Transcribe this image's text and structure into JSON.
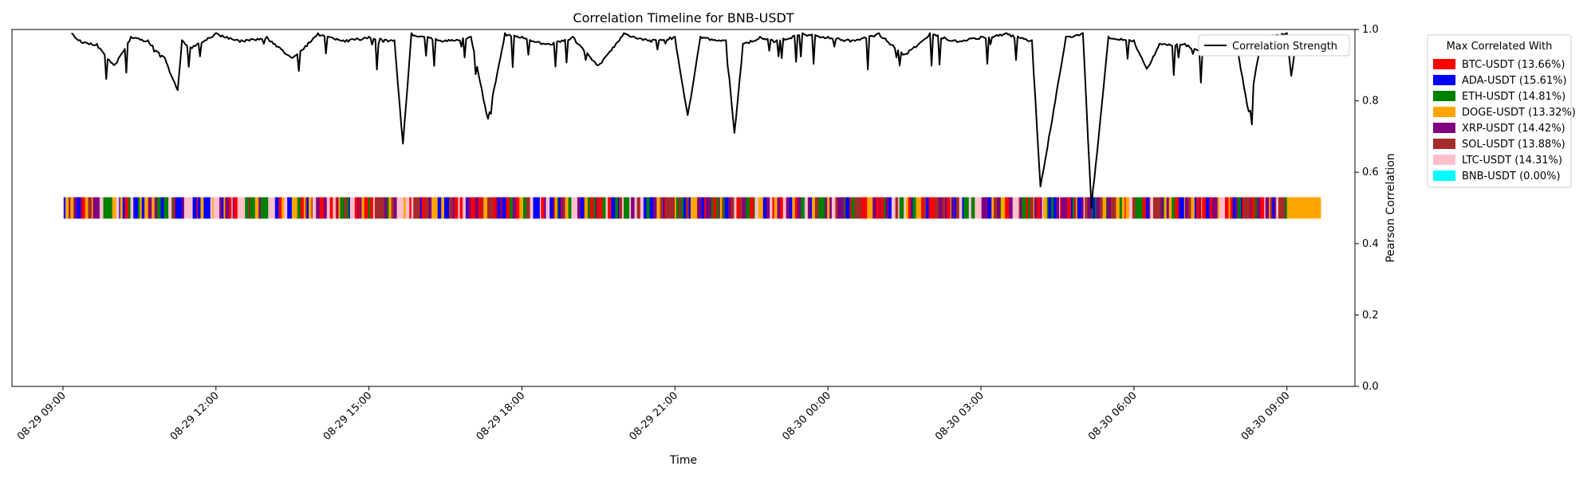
{
  "chart_data": {
    "type": "line",
    "title": "Correlation Timeline for BNB-USDT",
    "xlabel": "Time",
    "ylabel": "Pearson Correlation",
    "ylim": [
      0,
      1
    ],
    "y_ticks": [
      "0.0",
      "0.2",
      "0.4",
      "0.6",
      "0.8",
      "1.0"
    ],
    "x_ticks": [
      "08-29 09:00",
      "08-29 12:00",
      "08-29 15:00",
      "08-29 18:00",
      "08-29 21:00",
      "08-30 00:00",
      "08-30 03:00",
      "08-30 06:00",
      "08-30 09:00"
    ],
    "x_range": [
      "08-29 08:00",
      "08-30 10:20"
    ],
    "grid": false,
    "line_series": {
      "name": "Correlation Strength",
      "color": "#000000",
      "x": [
        "08-29 09:10",
        "08-29 09:20",
        "08-29 09:40",
        "08-29 10:00",
        "08-29 10:20",
        "08-29 10:40",
        "08-29 11:00",
        "08-29 11:15",
        "08-29 11:20",
        "08-29 11:30",
        "08-29 12:00",
        "08-29 12:30",
        "08-29 13:00",
        "08-29 13:30",
        "08-29 14:00",
        "08-29 14:30",
        "08-29 15:00",
        "08-29 15:30",
        "08-29 15:40",
        "08-29 15:50",
        "08-29 16:30",
        "08-29 17:00",
        "08-29 17:20",
        "08-29 17:40",
        "08-29 18:00",
        "08-29 18:30",
        "08-29 19:00",
        "08-29 19:30",
        "08-29 20:00",
        "08-29 20:30",
        "08-29 21:00",
        "08-29 21:15",
        "08-29 21:30",
        "08-29 22:00",
        "08-29 22:10",
        "08-29 22:20",
        "08-29 22:40",
        "08-29 23:00",
        "08-29 23:30",
        "08-30 00:00",
        "08-30 00:30",
        "08-30 01:00",
        "08-30 01:30",
        "08-30 02:00",
        "08-30 02:30",
        "08-30 03:00",
        "08-30 03:30",
        "08-30 04:00",
        "08-30 04:10",
        "08-30 04:20",
        "08-30 04:40",
        "08-30 05:00",
        "08-30 05:10",
        "08-30 05:15",
        "08-30 05:30",
        "08-30 06:00",
        "08-30 06:15",
        "08-30 06:30",
        "08-30 07:00",
        "08-30 07:30",
        "08-30 08:00",
        "08-30 08:15",
        "08-30 08:30",
        "08-30 09:00",
        "08-30 09:05",
        "08-30 09:10"
      ],
      "y": [
        0.99,
        0.97,
        0.96,
        0.9,
        0.98,
        0.97,
        0.92,
        0.83,
        0.97,
        0.95,
        0.99,
        0.97,
        0.98,
        0.92,
        0.99,
        0.97,
        0.98,
        0.97,
        0.68,
        0.99,
        0.97,
        0.98,
        0.75,
        0.99,
        0.98,
        0.96,
        0.98,
        0.9,
        0.99,
        0.97,
        0.98,
        0.76,
        0.98,
        0.97,
        0.71,
        0.96,
        0.98,
        0.97,
        0.99,
        0.98,
        0.97,
        0.99,
        0.93,
        0.99,
        0.97,
        0.98,
        0.99,
        0.97,
        0.56,
        0.7,
        0.98,
        0.99,
        0.5,
        0.62,
        0.98,
        0.97,
        0.89,
        0.96,
        0.96,
        0.93,
        0.97,
        0.77,
        0.98,
        0.99,
        0.87,
        0.96
      ]
    },
    "assignment_band": {
      "y_range": [
        0.47,
        0.53
      ],
      "x_range": [
        "08-29 09:00",
        "08-30 09:40"
      ],
      "final_segment": {
        "x_range": [
          "08-30 09:00",
          "08-30 09:40"
        ],
        "name": "DOGE-USDT"
      }
    },
    "legend_line": {
      "label": "Correlation Strength",
      "placement": "upper-right"
    },
    "legend_assets": {
      "title": "Max Correlated With",
      "placement": "outside-right",
      "entries": [
        {
          "name": "BTC-USDT",
          "label": "BTC-USDT (13.66%)",
          "share": 13.66,
          "color": "#ff0000"
        },
        {
          "name": "ADA-USDT",
          "label": "ADA-USDT (15.61%)",
          "share": 15.61,
          "color": "#0000ff"
        },
        {
          "name": "ETH-USDT",
          "label": "ETH-USDT (14.81%)",
          "share": 14.81,
          "color": "#008000"
        },
        {
          "name": "DOGE-USDT",
          "label": "DOGE-USDT (13.32%)",
          "share": 13.32,
          "color": "#ffa500"
        },
        {
          "name": "XRP-USDT",
          "label": "XRP-USDT (14.42%)",
          "share": 14.42,
          "color": "#800080"
        },
        {
          "name": "SOL-USDT",
          "label": "SOL-USDT (13.88%)",
          "share": 13.88,
          "color": "#a52a2a"
        },
        {
          "name": "LTC-USDT",
          "label": "LTC-USDT (14.31%)",
          "share": 14.31,
          "color": "#ffc0cb"
        },
        {
          "name": "BNB-USDT",
          "label": "BNB-USDT (0.00%)",
          "share": 0.0,
          "color": "#00ffff"
        }
      ]
    }
  }
}
